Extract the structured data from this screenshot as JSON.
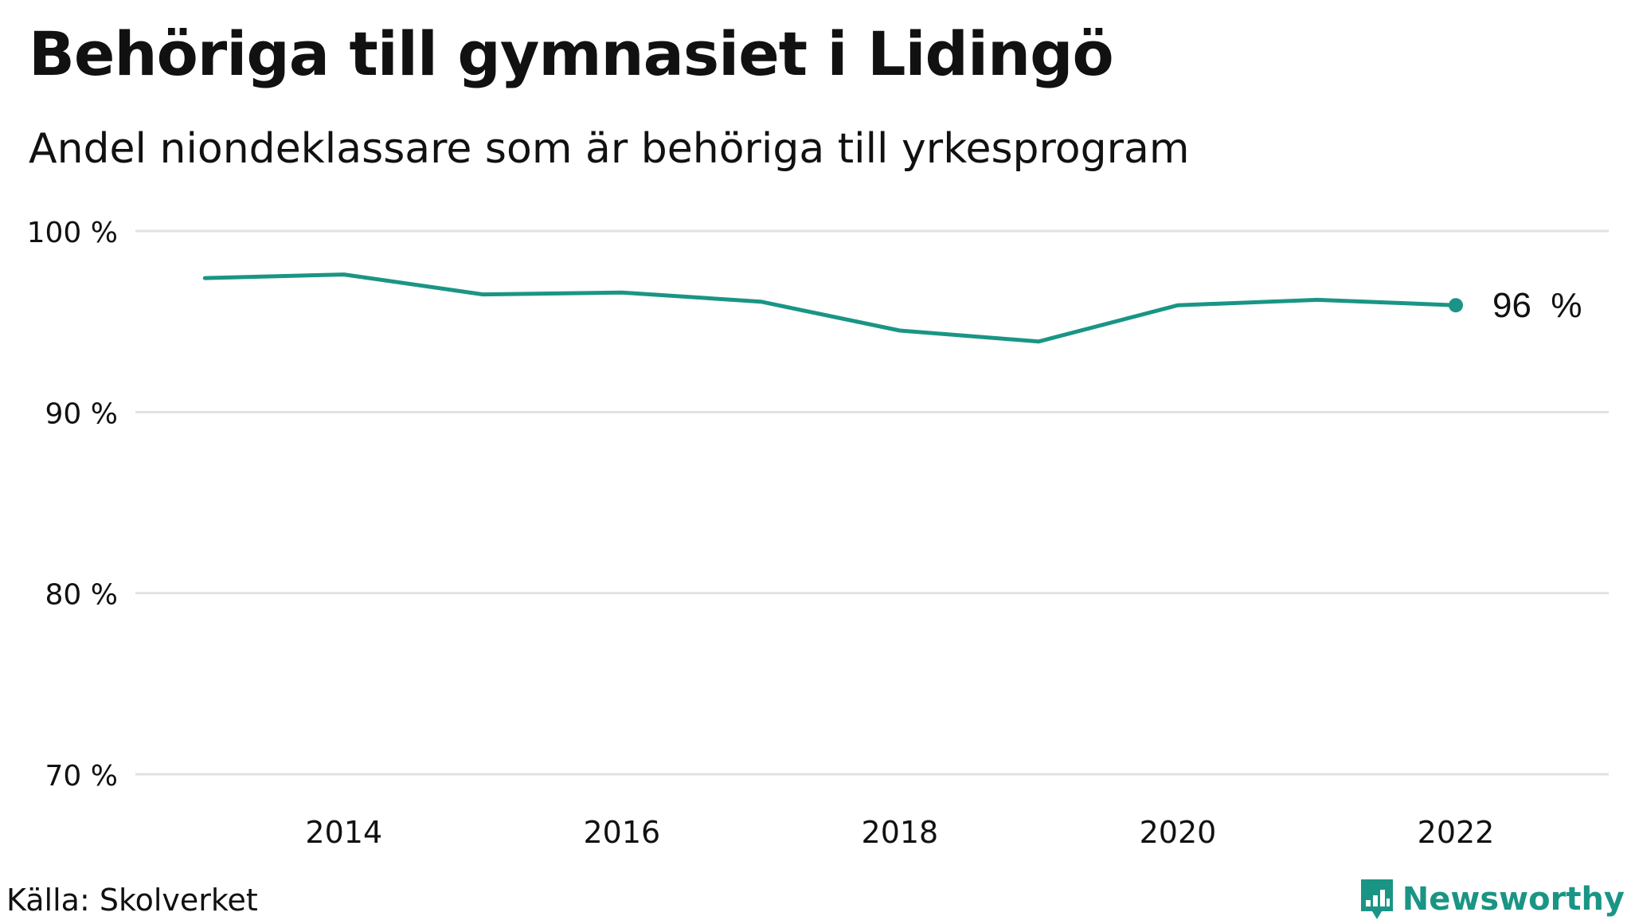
{
  "title": "Behöriga till gymnasiet i Lidingö",
  "subtitle": "Andel niondeklassare som är behöriga till yrkesprogram",
  "source": "Källa: Skolverket",
  "brand": {
    "name": "Newsworthy",
    "icon": "newsworthy-logo-icon",
    "color": "#1a9585"
  },
  "chart_data": {
    "type": "line",
    "x": [
      2013,
      2014,
      2015,
      2016,
      2017,
      2018,
      2019,
      2020,
      2021,
      2022
    ],
    "series": [
      {
        "values": [
          97.4,
          97.6,
          96.5,
          96.6,
          96.1,
          94.5,
          93.9,
          95.9,
          96.2,
          95.9
        ]
      }
    ],
    "xticks": [
      "2014",
      "2016",
      "2018",
      "2020",
      "2022"
    ],
    "yticks": [
      "100 %",
      "90 %",
      "80 %",
      "70 %"
    ],
    "ylim": [
      70,
      100
    ],
    "xlim": [
      2012.5,
      2023.1
    ],
    "end_label": "96  %",
    "line_color": "#1a9585",
    "grid": true,
    "gridline_color": "#e2e2e2"
  }
}
